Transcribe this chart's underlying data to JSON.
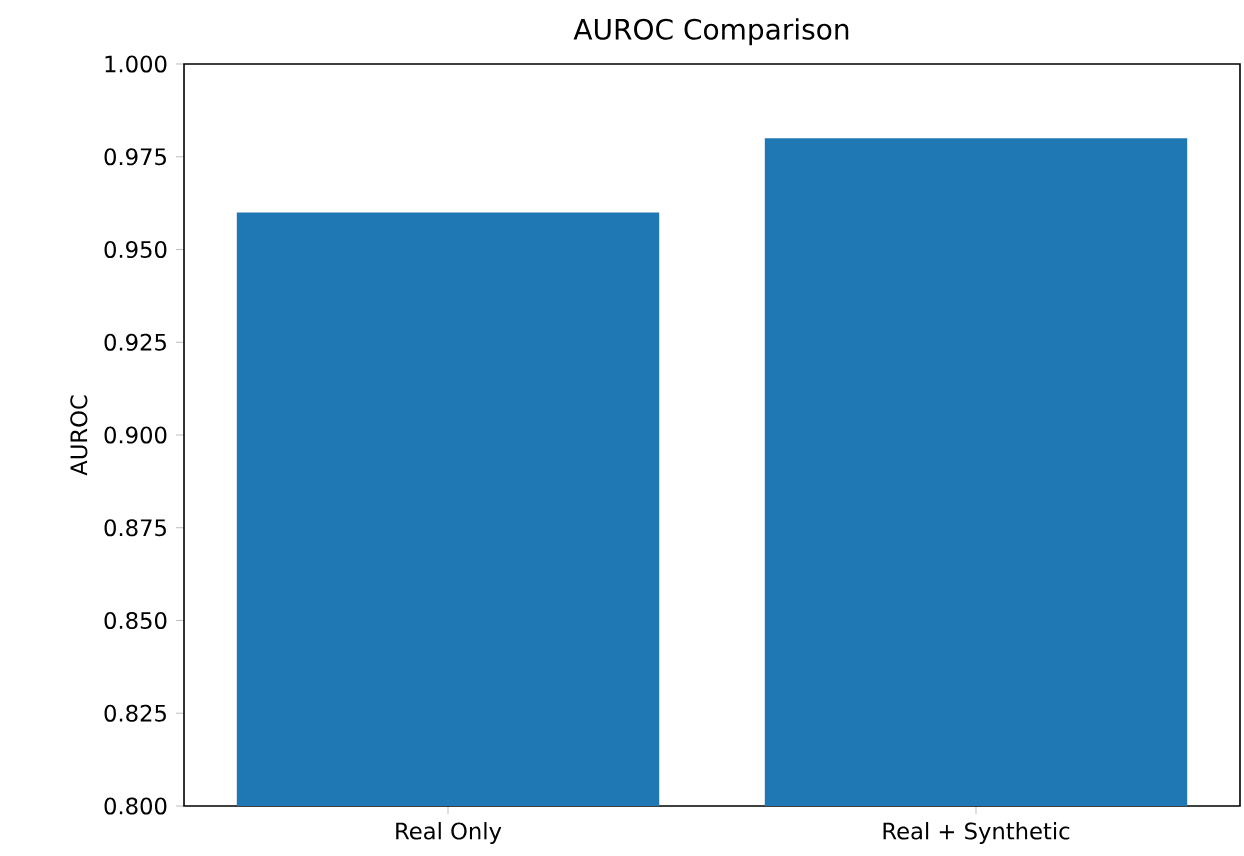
{
  "chart_data": {
    "type": "bar",
    "title": "AUROC Comparison",
    "ylabel": "AUROC",
    "categories": [
      "Real Only",
      "Real + Synthetic"
    ],
    "values": [
      0.96,
      0.98
    ],
    "color": "#1f77b4",
    "ylim": [
      0.8,
      1.0
    ],
    "yticks": [
      {
        "value": 0.8,
        "label": "0.800"
      },
      {
        "value": 0.825,
        "label": "0.825"
      },
      {
        "value": 0.85,
        "label": "0.850"
      },
      {
        "value": 0.875,
        "label": "0.875"
      },
      {
        "value": 0.9,
        "label": "0.900"
      },
      {
        "value": 0.925,
        "label": "0.925"
      },
      {
        "value": 0.95,
        "label": "0.950"
      },
      {
        "value": 0.975,
        "label": "0.975"
      },
      {
        "value": 1.0,
        "label": "1.000"
      }
    ]
  }
}
